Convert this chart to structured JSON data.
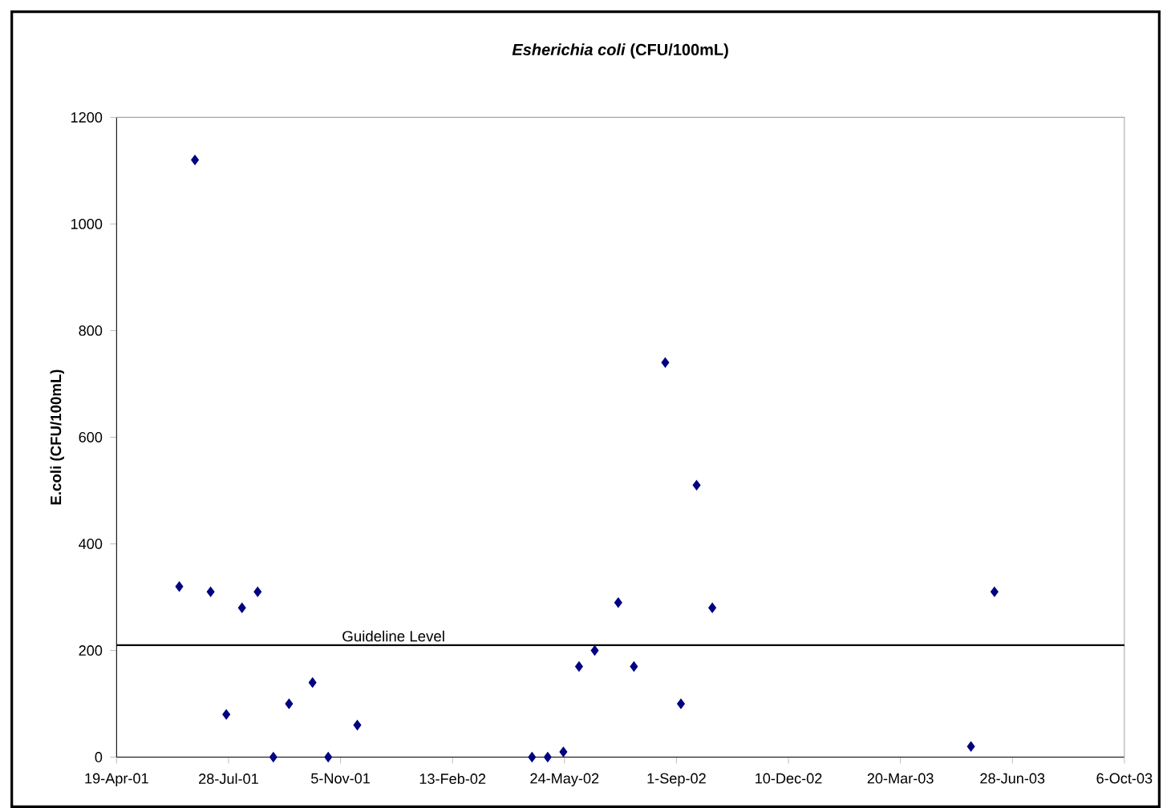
{
  "chart_data": {
    "type": "scatter",
    "title": "*Esherichia coli* (CFU/100mL)",
    "ylabel": "E.coli (CFU/100mL)",
    "x": [
      "2001-06-14",
      "2001-06-28",
      "2001-07-12",
      "2001-07-26",
      "2001-08-09",
      "2001-08-23",
      "2001-09-06",
      "2001-09-20",
      "2001-10-11",
      "2001-10-25",
      "2001-11-20",
      "2002-04-25",
      "2002-05-09",
      "2002-05-23",
      "2002-06-06",
      "2002-06-20",
      "2002-07-11",
      "2002-07-25",
      "2002-08-22",
      "2002-09-05",
      "2002-09-19",
      "2002-10-03",
      "2003-05-22",
      "2003-06-12"
    ],
    "values": [
      320,
      1120,
      310,
      80,
      280,
      310,
      0,
      100,
      140,
      0,
      60,
      0,
      0,
      10,
      170,
      200,
      290,
      170,
      740,
      100,
      510,
      280,
      20,
      310
    ],
    "color": "#000080",
    "marker": "diamond",
    "xlim": [
      "2001-04-19",
      "2003-10-06"
    ],
    "xticks": [
      {
        "value": "2001-04-19",
        "label": "19-Apr-01"
      },
      {
        "value": "2001-07-28",
        "label": "28-Jul-01"
      },
      {
        "value": "2001-11-05",
        "label": "5-Nov-01"
      },
      {
        "value": "2002-02-13",
        "label": "13-Feb-02"
      },
      {
        "value": "2002-05-24",
        "label": "24-May-02"
      },
      {
        "value": "2002-09-01",
        "label": "1-Sep-02"
      },
      {
        "value": "2002-12-10",
        "label": "10-Dec-02"
      },
      {
        "value": "2003-03-20",
        "label": "20-Mar-03"
      },
      {
        "value": "2003-06-28",
        "label": "28-Jun-03"
      },
      {
        "value": "2003-10-06",
        "label": "6-Oct-03"
      }
    ],
    "ylim": [
      0,
      1200
    ],
    "yticks": [
      0,
      200,
      400,
      600,
      800,
      1000,
      1200
    ],
    "ref_lines": [
      {
        "axis": "y",
        "value": 210,
        "label": "Guideline Level",
        "color": "#000000",
        "line_style": "solid"
      }
    ]
  }
}
